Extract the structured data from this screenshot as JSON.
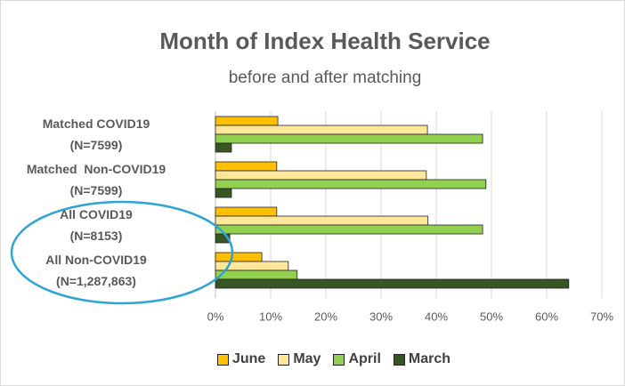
{
  "chart_data": {
    "type": "bar",
    "orientation": "horizontal",
    "title": "Month of Index Health Service",
    "subtitle": "before and after matching",
    "categories": [
      "Matched COVID19\n(N=7599)",
      "Matched  Non-COVID19\n(N=7599)",
      "All COVID19\n(N=8153)",
      "All Non-COVID19\n(N=1,287,863)"
    ],
    "series": [
      {
        "name": "June",
        "color": "#ffc000",
        "values": [
          11.3,
          11.1,
          11.1,
          8.4
        ]
      },
      {
        "name": "May",
        "color": "#ffe699",
        "values": [
          38.4,
          38.2,
          38.5,
          13.2
        ]
      },
      {
        "name": "April",
        "color": "#92d050",
        "values": [
          48.4,
          49,
          48.4,
          14.8
        ]
      },
      {
        "name": "March",
        "color": "#375623",
        "values": [
          2.9,
          2.9,
          2.6,
          64
        ]
      }
    ],
    "ylim": [
      0,
      70
    ],
    "yticks": [
      {
        "value": 0,
        "label": "0%"
      },
      {
        "value": 10,
        "label": "10%"
      },
      {
        "value": 20,
        "label": "20%"
      },
      {
        "value": 30,
        "label": "30%"
      },
      {
        "value": 40,
        "label": "40%"
      },
      {
        "value": 50,
        "label": "50%"
      },
      {
        "value": 60,
        "label": "60%"
      },
      {
        "value": 70,
        "label": "70%"
      }
    ],
    "grid": true,
    "legend": "bottom"
  }
}
